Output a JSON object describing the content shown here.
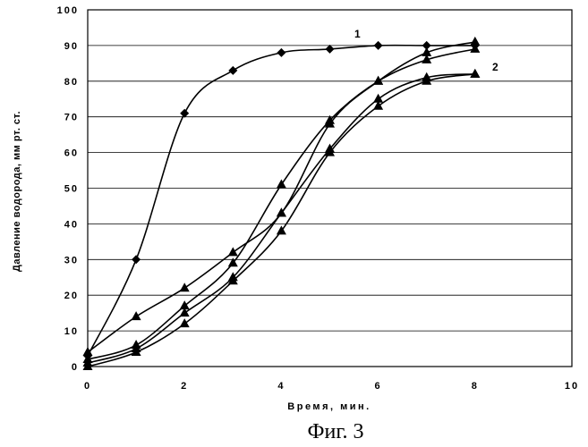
{
  "chart_data": {
    "type": "line",
    "xlabel": "Время, мин.",
    "ylabel": "Давление водорода, мм рт. ст.",
    "caption": "Фиг. 3",
    "xlim": [
      0,
      10
    ],
    "ylim": [
      0,
      100
    ],
    "xticks": [
      "0",
      "2",
      "4",
      "6",
      "8",
      "10"
    ],
    "yticks": [
      "0",
      "10",
      "20",
      "30",
      "40",
      "50",
      "60",
      "70",
      "80",
      "90",
      "100"
    ],
    "grid": true,
    "series_labels": [
      "1",
      "2"
    ],
    "series": [
      {
        "marker": "diamond",
        "x": [
          0,
          1,
          2,
          3,
          4,
          5,
          6,
          7,
          8
        ],
        "y": [
          3,
          30,
          71,
          83,
          88,
          89,
          90,
          90,
          90
        ]
      },
      {
        "marker": "triangle",
        "x": [
          0,
          1,
          2,
          3,
          4,
          5,
          6,
          7,
          8
        ],
        "y": [
          4,
          14,
          22,
          32,
          43,
          68,
          80,
          88,
          91
        ]
      },
      {
        "marker": "triangle",
        "x": [
          0,
          1,
          2,
          3,
          4,
          5,
          6,
          7,
          8
        ],
        "y": [
          2,
          6,
          17,
          29,
          51,
          69,
          80,
          86,
          89
        ]
      },
      {
        "marker": "triangle",
        "x": [
          0,
          1,
          2,
          3,
          4,
          5,
          6,
          7,
          8
        ],
        "y": [
          1,
          5,
          15,
          25,
          43,
          61,
          75,
          81,
          82
        ]
      },
      {
        "marker": "triangle",
        "x": [
          0,
          1,
          2,
          3,
          4,
          5,
          6,
          7,
          8
        ],
        "y": [
          0,
          4,
          12,
          24,
          38,
          60,
          73,
          80,
          82
        ]
      }
    ]
  }
}
